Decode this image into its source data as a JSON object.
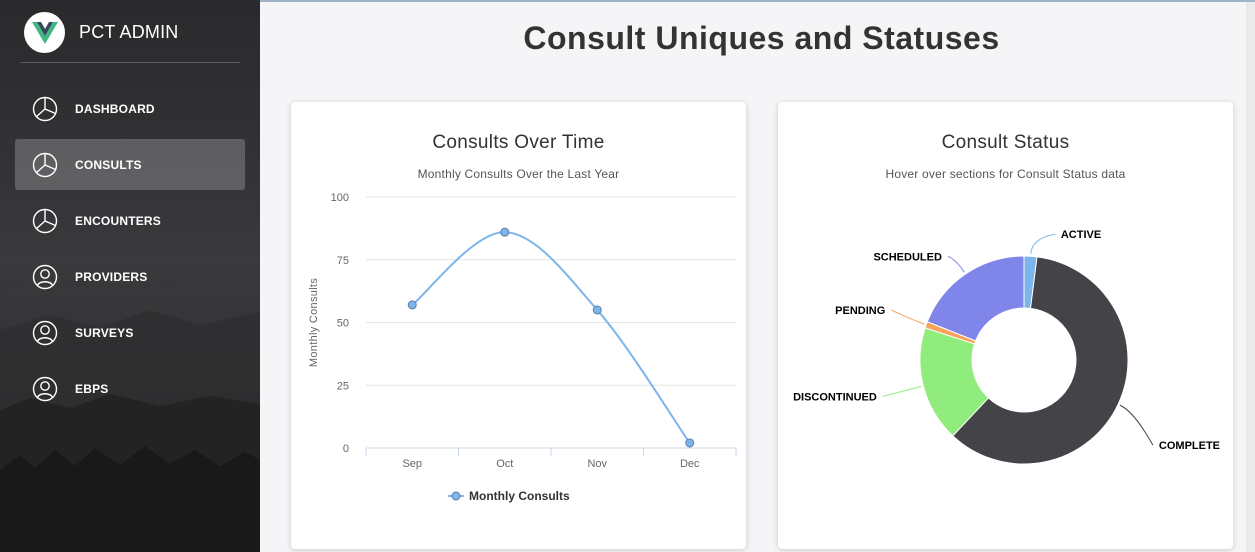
{
  "app": {
    "title": "PCT ADMIN"
  },
  "sidebar": {
    "items": [
      {
        "label": "DASHBOARD",
        "icon": "pie-chart-icon",
        "active": false
      },
      {
        "label": "CONSULTS",
        "icon": "pie-chart-icon",
        "active": true
      },
      {
        "label": "ENCOUNTERS",
        "icon": "pie-chart-icon",
        "active": false
      },
      {
        "label": "PROVIDERS",
        "icon": "user-icon",
        "active": false
      },
      {
        "label": "SURVEYS",
        "icon": "user-icon",
        "active": false
      },
      {
        "label": "EBPS",
        "icon": "user-icon",
        "active": false
      }
    ]
  },
  "page": {
    "title": "Consult Uniques and Statuses"
  },
  "charts": {
    "line": {
      "title": "Consults Over Time",
      "subtitle": "Monthly Consults Over the Last Year"
    },
    "donut": {
      "title": "Consult Status",
      "subtitle": "Hover over sections for Consult Status data"
    }
  },
  "chart_data": [
    {
      "type": "line",
      "title": "Consults Over Time",
      "subtitle": "Monthly Consults Over the Last Year",
      "categories": [
        "Sep",
        "Oct",
        "Nov",
        "Dec"
      ],
      "series": [
        {
          "name": "Monthly Consults",
          "values": [
            57,
            86,
            55,
            2
          ],
          "color": "#7cb5ec"
        }
      ],
      "xlabel": "",
      "ylabel": "Monthly Consults",
      "ylim": [
        0,
        100
      ],
      "yticks": [
        0,
        25,
        50,
        75,
        100
      ],
      "grid": true,
      "legend": "bottom"
    },
    {
      "type": "pie",
      "title": "Consult Status",
      "subtitle": "Hover over sections for Consult Status data",
      "donut": true,
      "slices": [
        {
          "label": "ACTIVE",
          "value": 2,
          "color": "#7cb5ec"
        },
        {
          "label": "COMPLETE",
          "value": 60,
          "color": "#434348"
        },
        {
          "label": "DISCONTINUED",
          "value": 18,
          "color": "#90ed7d"
        },
        {
          "label": "PENDING",
          "value": 1,
          "color": "#f7a35c"
        },
        {
          "label": "SCHEDULED",
          "value": 19,
          "color": "#8085e9"
        }
      ]
    }
  ]
}
